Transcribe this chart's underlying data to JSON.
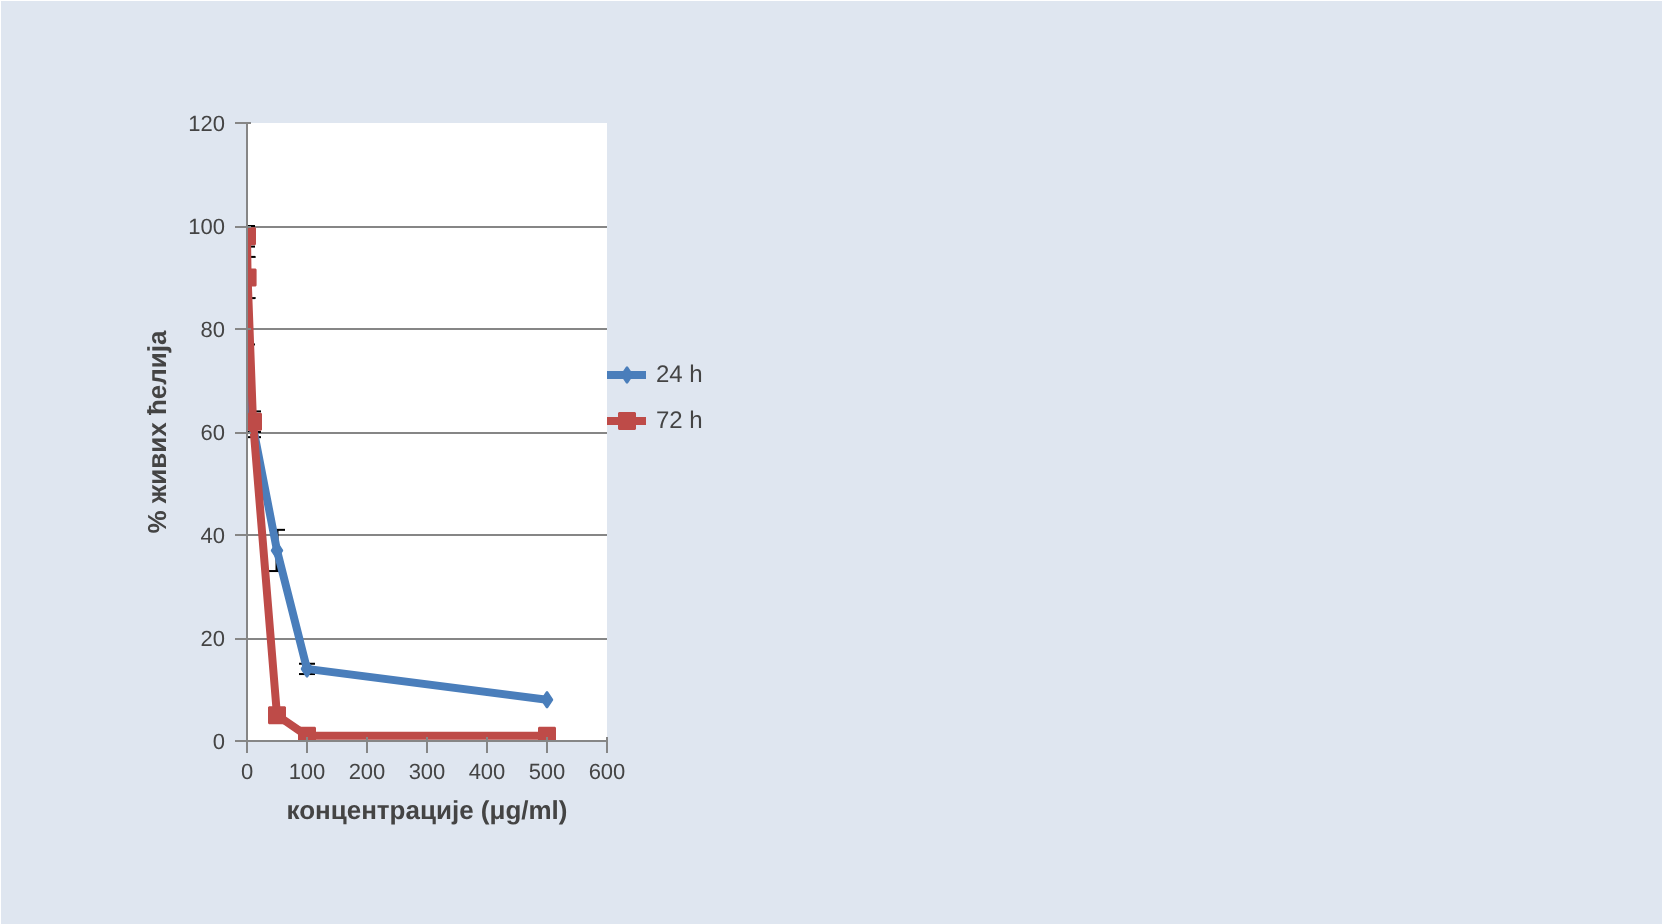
{
  "chart_data": {
    "type": "line",
    "xlabel": "концентрације (μg/ml)",
    "ylabel": "% живих ћелија",
    "xlim": [
      0,
      600
    ],
    "xticks": [
      0,
      100,
      200,
      300,
      400,
      500,
      600
    ],
    "ylim": [
      0,
      120
    ],
    "yticks": [
      0,
      20,
      40,
      60,
      80,
      100,
      120
    ],
    "grid": "y",
    "legend": "right",
    "series": [
      {
        "name": "24 h",
        "color": "#4a7ebb",
        "marker": "diamond",
        "x": [
          0,
          10,
          50,
          100,
          500
        ],
        "values": [
          74,
          61,
          37,
          14,
          8
        ],
        "errors": [
          3,
          2,
          4,
          1,
          null
        ]
      },
      {
        "name": "72 h",
        "color": "#be4b48",
        "marker": "square",
        "x": [
          0,
          1,
          10,
          50,
          100,
          500
        ],
        "values": [
          98,
          90,
          62,
          5,
          1,
          1
        ],
        "errors": [
          2,
          4,
          2,
          null,
          null,
          null
        ]
      }
    ]
  }
}
